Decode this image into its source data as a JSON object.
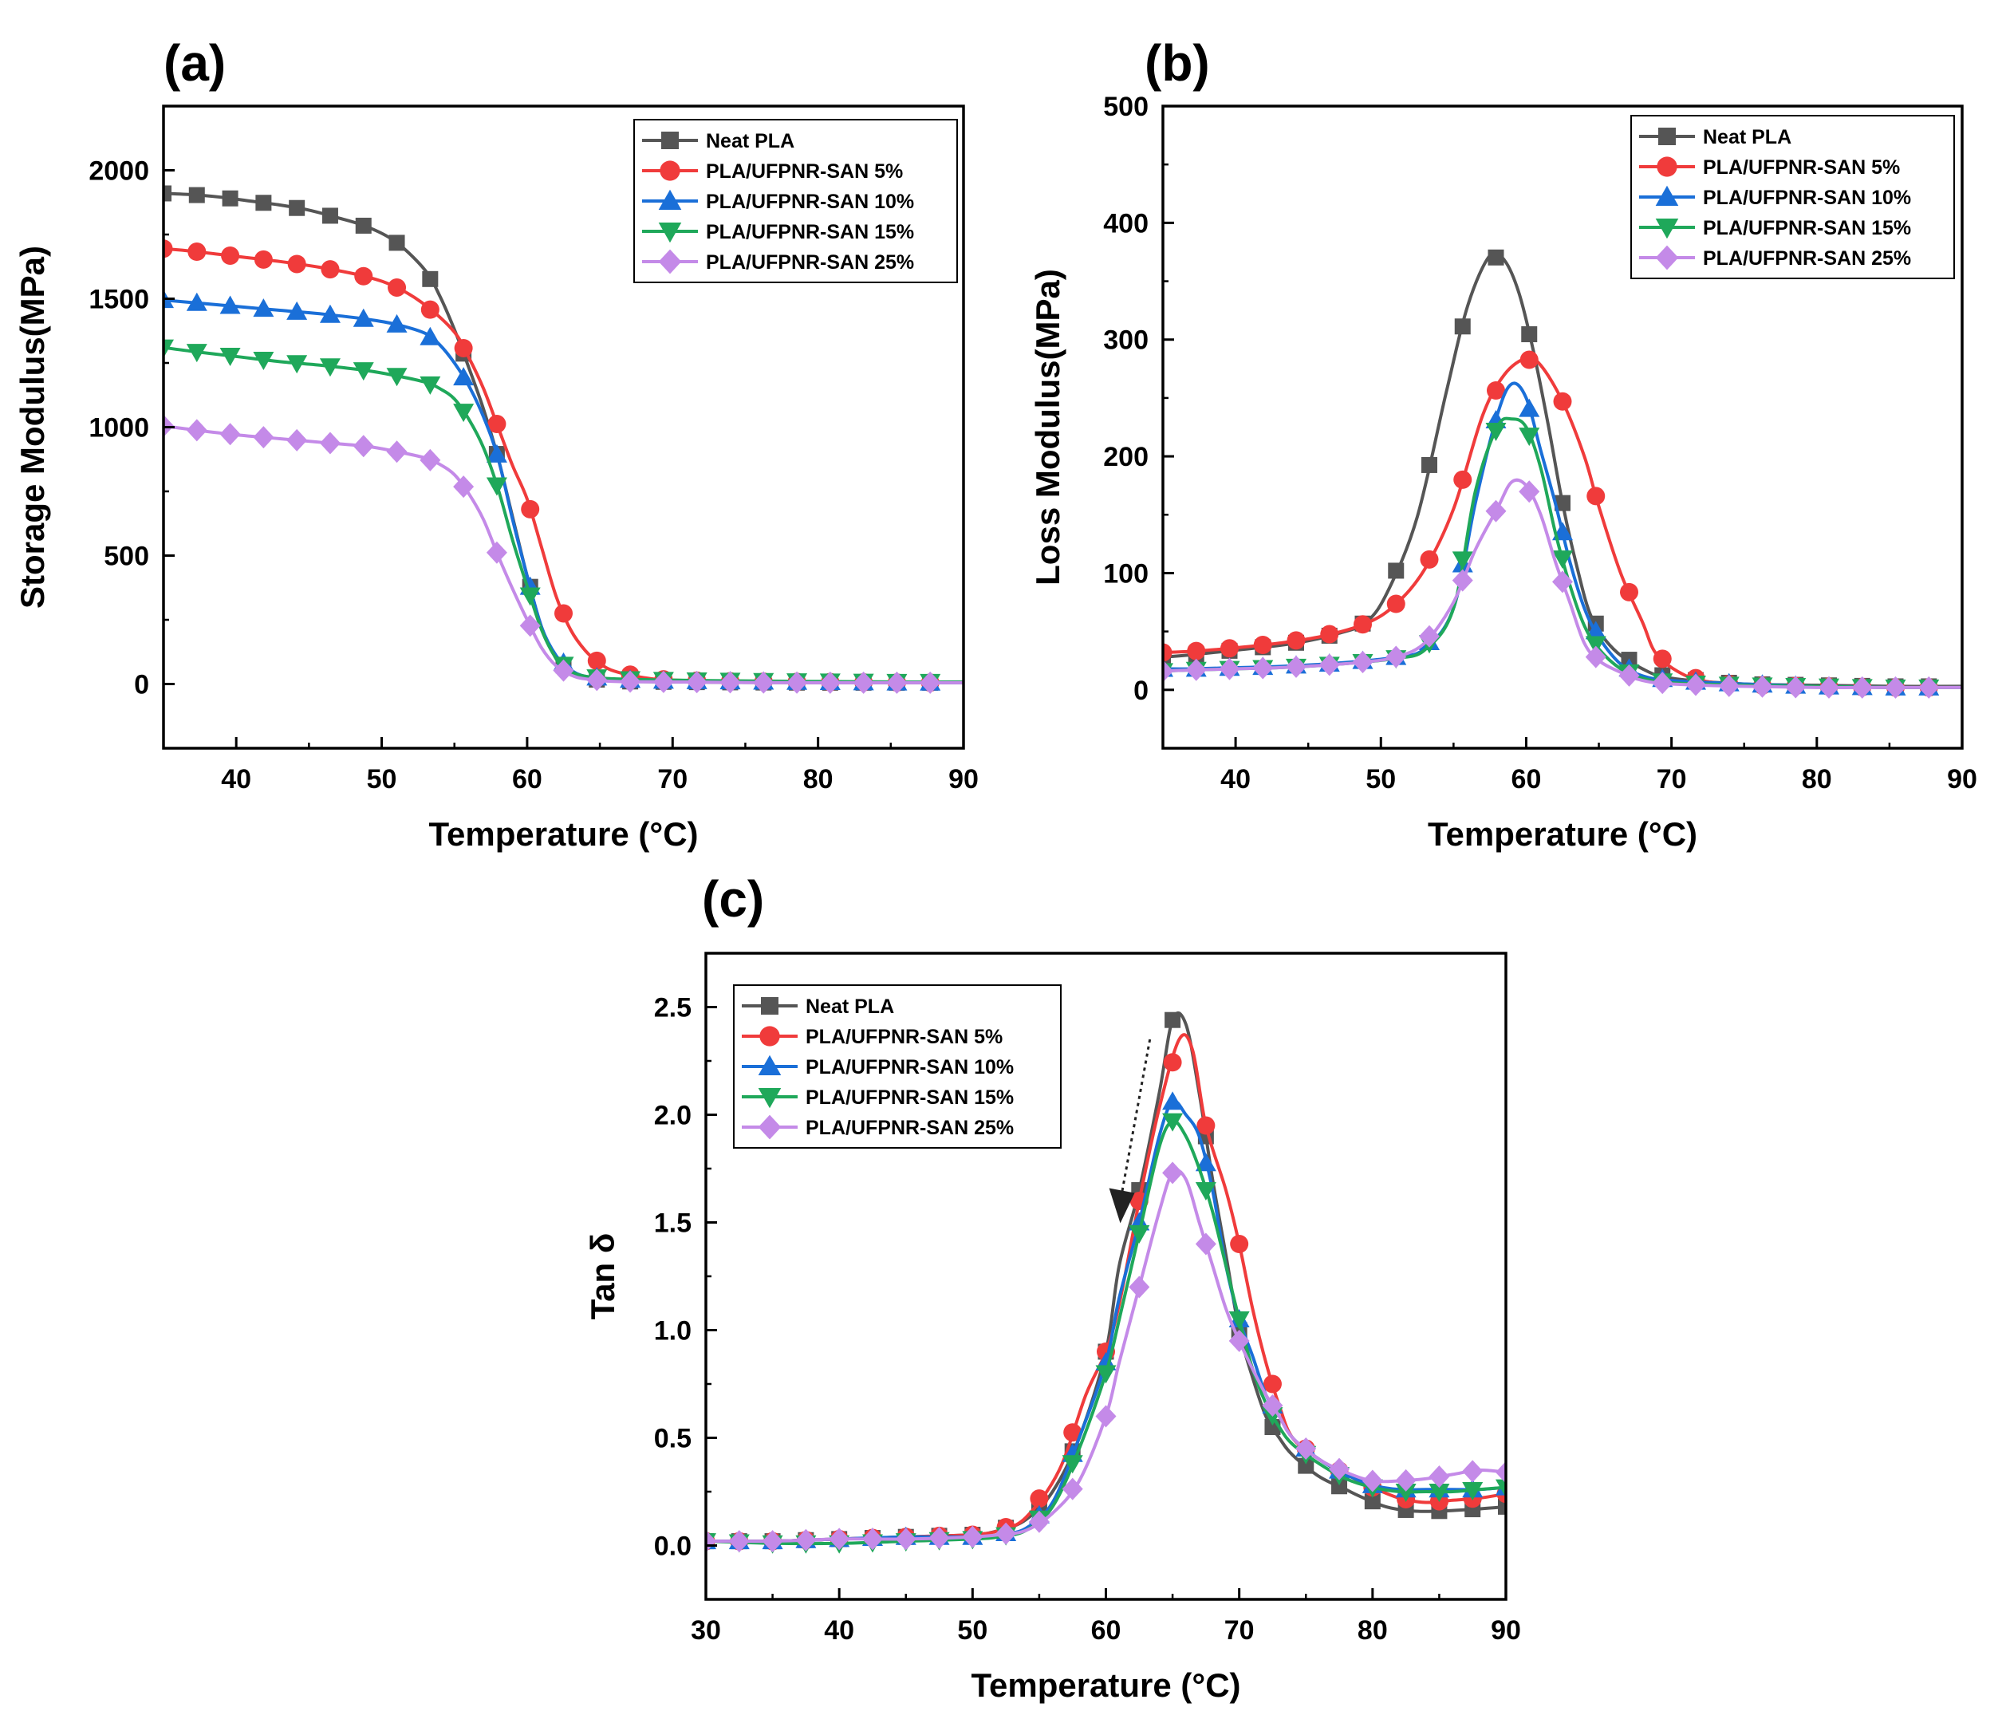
{
  "panels": [
    "(a)",
    "(b)",
    "(c)"
  ],
  "chart_data": [
    {
      "type": "line",
      "panel": "(a)",
      "xlabel": "Temperature (°C)",
      "ylabel": "Storage Modulus(MPa)",
      "xlim": [
        35,
        90
      ],
      "ylim": [
        -250,
        2250
      ],
      "xticks": [
        40,
        50,
        60,
        70,
        80,
        90
      ],
      "yticks": [
        0,
        500,
        1000,
        1500,
        2000
      ],
      "legend_position": "top-right",
      "series": [
        {
          "name": "Neat PLA",
          "color": "#555555",
          "marker": "square",
          "x": [
            35,
            37,
            39,
            41,
            43,
            45,
            47,
            49,
            51,
            53,
            54,
            55,
            56,
            57,
            58,
            59,
            60,
            61,
            62,
            63,
            64,
            65,
            67,
            70,
            75,
            80,
            85,
            90
          ],
          "y": [
            1910,
            1905,
            1895,
            1880,
            1865,
            1845,
            1815,
            1780,
            1720,
            1610,
            1510,
            1380,
            1230,
            1070,
            880,
            650,
            420,
            220,
            100,
            45,
            25,
            15,
            10,
            8,
            6,
            5,
            5,
            5
          ]
        },
        {
          "name": "PLA/UFPNR-SAN 5%",
          "color": "#f03b3b",
          "marker": "circle",
          "x": [
            35,
            37,
            40,
            43,
            46,
            49,
            51,
            53,
            55,
            56,
            57,
            58,
            59,
            60,
            61,
            62,
            63,
            64,
            65,
            66,
            68,
            70,
            75,
            80,
            85,
            90
          ],
          "y": [
            1695,
            1685,
            1665,
            1645,
            1620,
            1585,
            1545,
            1475,
            1370,
            1270,
            1150,
            1000,
            850,
            720,
            530,
            340,
            210,
            130,
            80,
            50,
            25,
            15,
            10,
            8,
            6,
            5
          ]
        },
        {
          "name": "PLA/UFPNR-SAN 10%",
          "color": "#1a6fd8",
          "marker": "triangle-up",
          "x": [
            35,
            37,
            40,
            43,
            46,
            49,
            51,
            53,
            54,
            55,
            56,
            57,
            58,
            59,
            60,
            61,
            62,
            63,
            64,
            66,
            70,
            75,
            80,
            85,
            90
          ],
          "y": [
            1495,
            1485,
            1470,
            1455,
            1440,
            1420,
            1400,
            1365,
            1320,
            1250,
            1160,
            1040,
            880,
            640,
            420,
            220,
            110,
            55,
            30,
            18,
            12,
            10,
            8,
            6,
            5
          ]
        },
        {
          "name": "PLA/UFPNR-SAN 15%",
          "color": "#1fa85a",
          "marker": "triangle-down",
          "x": [
            35,
            37,
            40,
            43,
            46,
            49,
            51,
            53,
            54,
            55,
            56,
            57,
            58,
            59,
            60,
            61,
            62,
            63,
            64,
            66,
            70,
            75,
            80,
            85,
            90
          ],
          "y": [
            1310,
            1295,
            1275,
            1255,
            1240,
            1220,
            1200,
            1175,
            1150,
            1110,
            1030,
            920,
            760,
            560,
            380,
            210,
            100,
            50,
            30,
            20,
            15,
            12,
            10,
            8,
            8
          ]
        },
        {
          "name": "PLA/UFPNR-SAN 25%",
          "color": "#c48ae8",
          "marker": "diamond",
          "x": [
            35,
            37,
            40,
            43,
            46,
            49,
            51,
            53,
            54,
            55,
            56,
            57,
            58,
            59,
            60,
            61,
            62,
            63,
            64,
            66,
            70,
            75,
            80,
            85,
            90
          ],
          "y": [
            1005,
            990,
            970,
            955,
            940,
            925,
            905,
            880,
            855,
            815,
            740,
            640,
            500,
            370,
            250,
            140,
            70,
            35,
            20,
            10,
            8,
            6,
            5,
            5,
            5
          ]
        }
      ]
    },
    {
      "type": "line",
      "panel": "(b)",
      "xlabel": "Temperature (°C)",
      "ylabel": "Loss Modulus(MPa)",
      "xlim": [
        35,
        90
      ],
      "ylim": [
        -50,
        500
      ],
      "xticks": [
        40,
        50,
        60,
        70,
        80,
        90
      ],
      "yticks": [
        0,
        100,
        200,
        300,
        400,
        500
      ],
      "legend_position": "top-right",
      "series": [
        {
          "name": "Neat PLA",
          "color": "#555555",
          "marker": "square",
          "x": [
            35,
            37,
            40,
            43,
            45,
            47,
            49,
            50.5,
            52.5,
            54.5,
            56,
            57.5,
            58.5,
            59.5,
            60.5,
            61.5,
            62.5,
            63.5,
            64.5,
            66,
            68,
            70,
            75,
            80,
            85,
            90
          ],
          "y": [
            28,
            30,
            34,
            38,
            42,
            48,
            58,
            85,
            148,
            255,
            330,
            372,
            368,
            340,
            290,
            228,
            160,
            105,
            62,
            35,
            18,
            10,
            5,
            4,
            3,
            3
          ]
        },
        {
          "name": "PLA/UFPNR-SAN 5%",
          "color": "#f03b3b",
          "marker": "circle",
          "x": [
            35,
            37,
            40,
            43,
            46,
            49,
            51,
            53,
            55,
            57,
            58.5,
            60,
            61,
            62.5,
            64,
            65,
            66.5,
            68,
            69,
            71,
            73,
            75,
            80,
            85,
            90
          ],
          "y": [
            32,
            33,
            36,
            40,
            46,
            57,
            73,
            103,
            155,
            235,
            270,
            284,
            278,
            247,
            200,
            157,
            100,
            58,
            30,
            12,
            6,
            4,
            3,
            2,
            2
          ]
        },
        {
          "name": "PLA/UFPNR-SAN 10%",
          "color": "#1a6fd8",
          "marker": "triangle-up",
          "x": [
            35,
            37,
            40,
            43,
            46,
            49,
            51,
            53,
            55,
            56.5,
            58,
            59,
            60,
            61,
            62,
            63,
            64,
            65,
            66.5,
            68,
            70,
            75,
            80,
            85,
            90
          ],
          "y": [
            18,
            18,
            19,
            20,
            22,
            25,
            28,
            35,
            70,
            160,
            235,
            262,
            250,
            205,
            160,
            110,
            70,
            45,
            22,
            12,
            8,
            5,
            3,
            2,
            2
          ]
        },
        {
          "name": "PLA/UFPNR-SAN 15%",
          "color": "#1fa85a",
          "marker": "triangle-down",
          "x": [
            35,
            37,
            40,
            43,
            46,
            49,
            51,
            53,
            55,
            56.5,
            58,
            59,
            60,
            61,
            62,
            63,
            64,
            65,
            66.5,
            68,
            70,
            75,
            80,
            85,
            90
          ],
          "y": [
            16,
            17,
            18,
            19,
            21,
            24,
            27,
            34,
            70,
            170,
            225,
            232,
            225,
            190,
            135,
            90,
            55,
            35,
            18,
            10,
            6,
            4,
            3,
            2,
            2
          ]
        },
        {
          "name": "PLA/UFPNR-SAN 25%",
          "color": "#c48ae8",
          "marker": "diamond",
          "x": [
            35,
            37,
            40,
            43,
            46,
            49,
            51,
            53,
            55,
            56.5,
            58,
            59,
            60,
            61,
            62,
            63,
            64,
            65,
            66.5,
            68,
            70,
            75,
            80,
            85,
            90
          ],
          "y": [
            16,
            17,
            18,
            19,
            21,
            24,
            28,
            40,
            75,
            120,
            155,
            178,
            175,
            150,
            110,
            75,
            40,
            25,
            15,
            8,
            5,
            3,
            2,
            2,
            2
          ]
        }
      ]
    },
    {
      "type": "line",
      "panel": "(c)",
      "xlabel": "Temperature (°C)",
      "ylabel": "Tan δ",
      "xlim": [
        30,
        90
      ],
      "ylim": [
        -0.25,
        2.75
      ],
      "xticks": [
        30,
        40,
        50,
        60,
        70,
        80,
        90
      ],
      "yticks": [
        0.0,
        0.5,
        1.0,
        1.5,
        2.0,
        2.5
      ],
      "xticklabels": [
        "30",
        "40",
        "50",
        "60",
        "70",
        "80",
        "90"
      ],
      "yticklabels": [
        "0.0",
        "0.5",
        "1.0",
        "1.5",
        "2.0",
        "2.5"
      ],
      "legend_position": "top-left",
      "annotation": "dashed arrow pointing down at the peaks (decreasing Tan δ with SAN content)",
      "series": [
        {
          "name": "Neat PLA",
          "color": "#555555",
          "marker": "square",
          "x": [
            30,
            35,
            40,
            45,
            50,
            52,
            54,
            56,
            58,
            60,
            61,
            62.5,
            64,
            65,
            66,
            67,
            68,
            69,
            70,
            71,
            72,
            73,
            74,
            76,
            78,
            79,
            81,
            83,
            85,
            88,
            90
          ],
          "y": [
            0.02,
            0.02,
            0.03,
            0.04,
            0.05,
            0.07,
            0.12,
            0.25,
            0.5,
            0.9,
            1.3,
            1.65,
            2.1,
            2.44,
            2.42,
            2.1,
            1.7,
            1.35,
            1.0,
            0.78,
            0.6,
            0.5,
            0.42,
            0.32,
            0.26,
            0.23,
            0.18,
            0.16,
            0.16,
            0.17,
            0.18
          ]
        },
        {
          "name": "PLA/UFPNR-SAN 5%",
          "color": "#f03b3b",
          "marker": "circle",
          "x": [
            30,
            35,
            40,
            45,
            50,
            52,
            54,
            56.5,
            58.5,
            60,
            61,
            62.5,
            64,
            65.5,
            66.5,
            67.5,
            69,
            70,
            71,
            72,
            73,
            74,
            76,
            78,
            80,
            82,
            84,
            86,
            88,
            90
          ],
          "y": [
            0.02,
            0.02,
            0.03,
            0.04,
            0.05,
            0.07,
            0.13,
            0.35,
            0.7,
            0.9,
            1.12,
            1.6,
            2.03,
            2.35,
            2.3,
            1.95,
            1.65,
            1.4,
            1.1,
            0.85,
            0.65,
            0.5,
            0.4,
            0.33,
            0.27,
            0.22,
            0.2,
            0.21,
            0.22,
            0.24
          ]
        },
        {
          "name": "PLA/UFPNR-SAN 10%",
          "color": "#1a6fd8",
          "marker": "triangle-up",
          "x": [
            30,
            35,
            40,
            45,
            50,
            52,
            54,
            56,
            58,
            60,
            61,
            62.5,
            64,
            65,
            66,
            67,
            68,
            69,
            70,
            71,
            72,
            73,
            74,
            76,
            78,
            80,
            82,
            84,
            86,
            88,
            90
          ],
          "y": [
            0.02,
            0.02,
            0.03,
            0.04,
            0.04,
            0.05,
            0.08,
            0.2,
            0.5,
            0.85,
            1.15,
            1.5,
            1.9,
            2.06,
            2.0,
            1.9,
            1.65,
            1.3,
            1.05,
            0.88,
            0.7,
            0.6,
            0.5,
            0.4,
            0.33,
            0.28,
            0.26,
            0.26,
            0.26,
            0.26,
            0.27
          ]
        },
        {
          "name": "PLA/UFPNR-SAN 15%",
          "color": "#1fa85a",
          "marker": "triangle-down",
          "x": [
            30,
            35,
            40,
            45,
            50,
            52,
            54,
            56,
            58,
            60,
            61,
            62.5,
            64,
            65,
            66,
            67,
            68,
            69,
            70,
            71,
            72,
            73,
            74,
            76,
            78,
            80,
            82,
            84,
            86,
            88,
            90
          ],
          "y": [
            0.02,
            0.01,
            0.01,
            0.02,
            0.03,
            0.04,
            0.07,
            0.18,
            0.45,
            0.8,
            1.05,
            1.45,
            1.85,
            1.97,
            1.9,
            1.75,
            1.55,
            1.3,
            1.05,
            0.82,
            0.66,
            0.55,
            0.47,
            0.38,
            0.31,
            0.27,
            0.25,
            0.25,
            0.25,
            0.26,
            0.27
          ]
        },
        {
          "name": "PLA/UFPNR-SAN 25%",
          "color": "#c48ae8",
          "marker": "diamond",
          "x": [
            30,
            35,
            40,
            45,
            50,
            52,
            54,
            56,
            58,
            60,
            61,
            62.5,
            64,
            65,
            66,
            67,
            68,
            69,
            70,
            71,
            72,
            73,
            74,
            76,
            78,
            80,
            82,
            84,
            86,
            88,
            90
          ],
          "y": [
            0.02,
            0.02,
            0.03,
            0.03,
            0.04,
            0.05,
            0.07,
            0.15,
            0.3,
            0.6,
            0.85,
            1.2,
            1.55,
            1.73,
            1.7,
            1.5,
            1.3,
            1.1,
            0.95,
            0.82,
            0.7,
            0.6,
            0.5,
            0.4,
            0.34,
            0.3,
            0.3,
            0.31,
            0.33,
            0.35,
            0.34
          ]
        }
      ]
    }
  ]
}
